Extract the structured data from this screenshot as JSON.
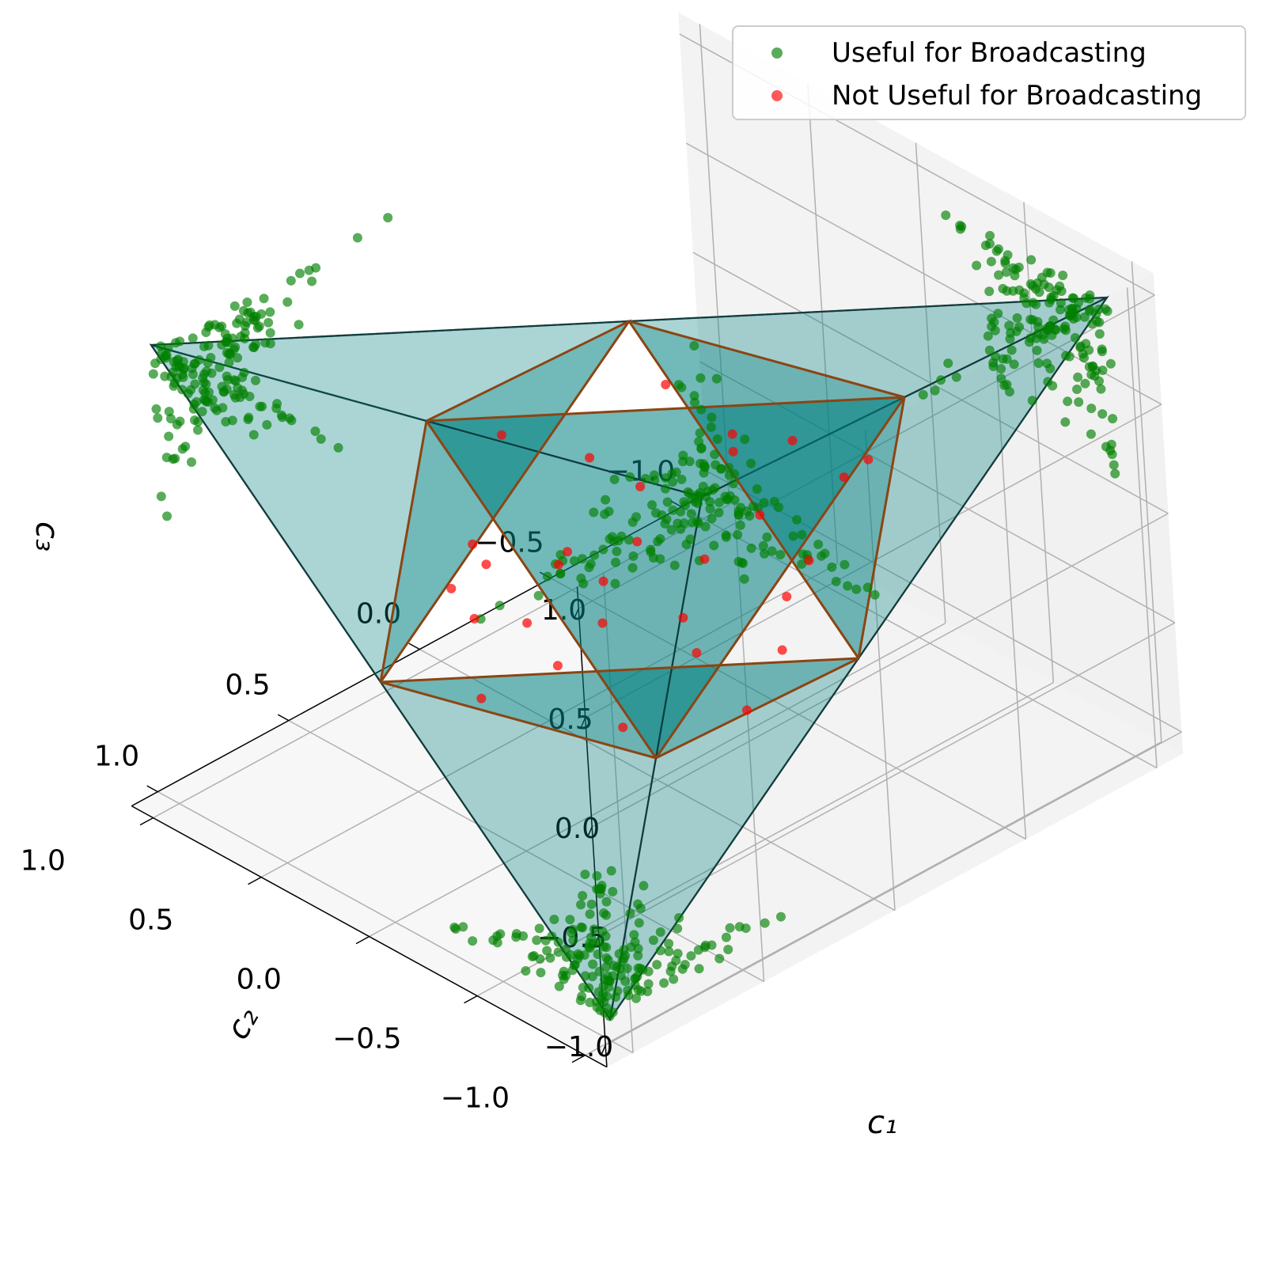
{
  "chart_data": {
    "type": "scatter",
    "projection": "3d",
    "xlabel": "c₁",
    "ylabel": "c₂",
    "zlabel": "c₃",
    "xlim": [
      -1.1,
      1.1
    ],
    "ylim": [
      -1.1,
      1.1
    ],
    "zlim": [
      -1.1,
      1.1
    ],
    "x_ticks": [
      "−1.0",
      "−0.5",
      "0.0",
      "0.5",
      "1.0"
    ],
    "y_ticks": [
      "−1.0",
      "−0.5",
      "0.0",
      "0.5",
      "1.0"
    ],
    "z_ticks": [
      "−1.0",
      "−0.5",
      "0.0",
      "0.5",
      "1.0"
    ],
    "grid": true,
    "legend_position": "top-right",
    "series": [
      {
        "name": "Useful for Broadcasting",
        "color": "#008000",
        "count": 700,
        "location": "inside the four corner tetrahedra of the cube [-1,1]^3"
      },
      {
        "name": "Not Useful for Broadcasting",
        "color": "#ff0000",
        "count": 30,
        "location": "inside the central octahedron"
      }
    ],
    "overlays": [
      {
        "shape": "tetrahedra",
        "vertices": [
          [
            1,
            1,
            1
          ],
          [
            1,
            -1,
            -1
          ],
          [
            -1,
            1,
            -1
          ],
          [
            -1,
            -1,
            1
          ]
        ],
        "fill": "#008080",
        "edge": "#0b3d3d"
      },
      {
        "shape": "octahedron",
        "vertices": [
          [
            1,
            0,
            0
          ],
          [
            -1,
            0,
            0
          ],
          [
            0,
            1,
            0
          ],
          [
            0,
            -1,
            0
          ],
          [
            0,
            0,
            1
          ],
          [
            0,
            0,
            -1
          ]
        ],
        "edge": "#8b4513"
      },
      {
        "shape": "tetrahedron-outline",
        "edge": "#d99a9a"
      }
    ]
  },
  "legend": {
    "item_0": "Useful for Broadcasting",
    "item_1": "Not Useful for Broadcasting",
    "color_0": "#008000",
    "color_1": "#ff0000"
  }
}
